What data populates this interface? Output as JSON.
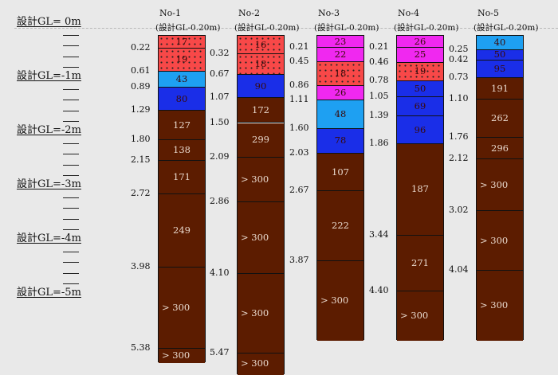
{
  "scale_labels": [
    "設計GL= 0m",
    "設計GL=-1m",
    "設計GL=-2m",
    "設計GL=-3m",
    "設計GL=-4m",
    "設計GL=-5m"
  ],
  "sub_label": "(設計GL-0.20m)",
  "colors": {
    "red": "#f84848",
    "lightblue": "#1ea0f2",
    "blue": "#1a2ee8",
    "magenta": "#f028f0",
    "brown": "#5c1c00"
  },
  "boreholes": [
    {
      "name": "No-1",
      "layers": [
        {
          "top": 0.0,
          "bottom": 0.22,
          "color": "red",
          "dotted": true,
          "label": "17"
        },
        {
          "top": 0.22,
          "bottom": 0.61,
          "color": "red",
          "dotted": true,
          "label": "19"
        },
        {
          "top": 0.61,
          "bottom": 0.89,
          "color": "lightblue",
          "dotted": false,
          "label": "43"
        },
        {
          "top": 0.89,
          "bottom": 1.29,
          "color": "blue",
          "dotted": false,
          "label": "80"
        },
        {
          "top": 1.29,
          "bottom": 1.8,
          "color": "brown",
          "dotted": false,
          "label": "127"
        },
        {
          "top": 1.8,
          "bottom": 2.15,
          "color": "brown",
          "dotted": false,
          "label": "138"
        },
        {
          "top": 2.15,
          "bottom": 2.72,
          "color": "brown",
          "dotted": false,
          "label": "171"
        },
        {
          "top": 2.72,
          "bottom": 3.98,
          "color": "brown",
          "dotted": false,
          "label": "249"
        },
        {
          "top": 3.98,
          "bottom": 5.38,
          "color": "brown",
          "dotted": false,
          "label": "> 300"
        },
        {
          "top": 5.38,
          "bottom": 5.63,
          "color": "brown",
          "dotted": false,
          "label": "> 300"
        }
      ],
      "depth_labels": [
        "0.22",
        "0.61",
        "0.89",
        "1.29",
        "1.80",
        "2.15",
        "2.72",
        "3.98",
        "5.38"
      ]
    },
    {
      "name": "No-2",
      "layers": [
        {
          "top": 0.0,
          "bottom": 0.32,
          "color": "red",
          "dotted": true,
          "label": "16"
        },
        {
          "top": 0.32,
          "bottom": 0.67,
          "color": "red",
          "dotted": true,
          "label": "18"
        },
        {
          "top": 0.67,
          "bottom": 1.07,
          "color": "blue",
          "dotted": false,
          "label": "90"
        },
        {
          "top": 1.07,
          "bottom": 1.5,
          "color": "brown",
          "dotted": false,
          "label": "172"
        },
        {
          "top": 1.5,
          "bottom": 2.09,
          "color": "brown",
          "dotted": false,
          "label": "299"
        },
        {
          "top": 2.09,
          "bottom": 2.86,
          "color": "brown",
          "dotted": false,
          "label": "> 300"
        },
        {
          "top": 2.86,
          "bottom": 4.1,
          "color": "brown",
          "dotted": false,
          "label": "> 300"
        },
        {
          "top": 4.1,
          "bottom": 5.47,
          "color": "brown",
          "dotted": false,
          "label": "> 300"
        },
        {
          "top": 5.47,
          "bottom": 5.83,
          "color": "brown",
          "dotted": false,
          "label": "> 300"
        }
      ],
      "depth_labels": [
        "0.32",
        "0.67",
        "1.07",
        "1.50",
        "2.09",
        "2.86",
        "4.10",
        "5.47"
      ]
    },
    {
      "name": "No-3",
      "layers": [
        {
          "top": 0.0,
          "bottom": 0.21,
          "color": "magenta",
          "dotted": false,
          "label": "23"
        },
        {
          "top": 0.21,
          "bottom": 0.45,
          "color": "magenta",
          "dotted": false,
          "label": "22"
        },
        {
          "top": 0.45,
          "bottom": 0.86,
          "color": "red",
          "dotted": true,
          "label": "18"
        },
        {
          "top": 0.86,
          "bottom": 1.11,
          "color": "magenta",
          "dotted": false,
          "label": "26"
        },
        {
          "top": 1.11,
          "bottom": 1.6,
          "color": "lightblue",
          "dotted": false,
          "label": "48"
        },
        {
          "top": 1.6,
          "bottom": 2.03,
          "color": "blue",
          "dotted": false,
          "label": "78"
        },
        {
          "top": 2.03,
          "bottom": 2.67,
          "color": "brown",
          "dotted": false,
          "label": "107"
        },
        {
          "top": 2.67,
          "bottom": 3.87,
          "color": "brown",
          "dotted": false,
          "label": "222"
        },
        {
          "top": 3.87,
          "bottom": 5.24,
          "color": "brown",
          "dotted": false,
          "label": "> 300"
        }
      ],
      "depth_labels": [
        "0.21",
        "0.45",
        "0.86",
        "1.11",
        "1.60",
        "2.03",
        "2.67",
        "3.87"
      ]
    },
    {
      "name": "No-4",
      "layers": [
        {
          "top": 0.0,
          "bottom": 0.21,
          "color": "magenta",
          "dotted": false,
          "label": "26"
        },
        {
          "top": 0.21,
          "bottom": 0.46,
          "color": "magenta",
          "dotted": false,
          "label": "25"
        },
        {
          "top": 0.46,
          "bottom": 0.78,
          "color": "red",
          "dotted": true,
          "label": "19"
        },
        {
          "top": 0.78,
          "bottom": 1.05,
          "color": "blue",
          "dotted": false,
          "label": "50"
        },
        {
          "top": 1.05,
          "bottom": 1.39,
          "color": "blue",
          "dotted": false,
          "label": "69"
        },
        {
          "top": 1.39,
          "bottom": 1.86,
          "color": "blue",
          "dotted": false,
          "label": "96"
        },
        {
          "top": 1.86,
          "bottom": 3.44,
          "color": "brown",
          "dotted": false,
          "label": "187"
        },
        {
          "top": 3.44,
          "bottom": 4.4,
          "color": "brown",
          "dotted": false,
          "label": "271"
        },
        {
          "top": 4.4,
          "bottom": 5.24,
          "color": "brown",
          "dotted": false,
          "label": "> 300"
        }
      ],
      "depth_labels": [
        "0.21",
        "0.46",
        "0.78",
        "1.05",
        "1.39",
        "1.86",
        "3.44",
        "4.40"
      ]
    },
    {
      "name": "No-5",
      "layers": [
        {
          "top": 0.0,
          "bottom": 0.25,
          "color": "lightblue",
          "dotted": false,
          "label": "40"
        },
        {
          "top": 0.25,
          "bottom": 0.42,
          "color": "blue",
          "dotted": false,
          "label": "50"
        },
        {
          "top": 0.42,
          "bottom": 0.73,
          "color": "blue",
          "dotted": false,
          "label": "95"
        },
        {
          "top": 0.73,
          "bottom": 1.1,
          "color": "brown",
          "dotted": false,
          "label": "191"
        },
        {
          "top": 1.1,
          "bottom": 1.76,
          "color": "brown",
          "dotted": false,
          "label": "262"
        },
        {
          "top": 1.76,
          "bottom": 2.12,
          "color": "brown",
          "dotted": false,
          "label": "296"
        },
        {
          "top": 2.12,
          "bottom": 3.02,
          "color": "brown",
          "dotted": false,
          "label": "> 300"
        },
        {
          "top": 3.02,
          "bottom": 4.04,
          "color": "brown",
          "dotted": false,
          "label": "> 300"
        },
        {
          "top": 4.04,
          "bottom": 5.24,
          "color": "brown",
          "dotted": false,
          "label": "> 300"
        }
      ],
      "depth_labels": [
        "0.25",
        "0.42",
        "0.73",
        "1.10",
        "1.76",
        "2.12",
        "3.02",
        "4.04"
      ]
    }
  ]
}
